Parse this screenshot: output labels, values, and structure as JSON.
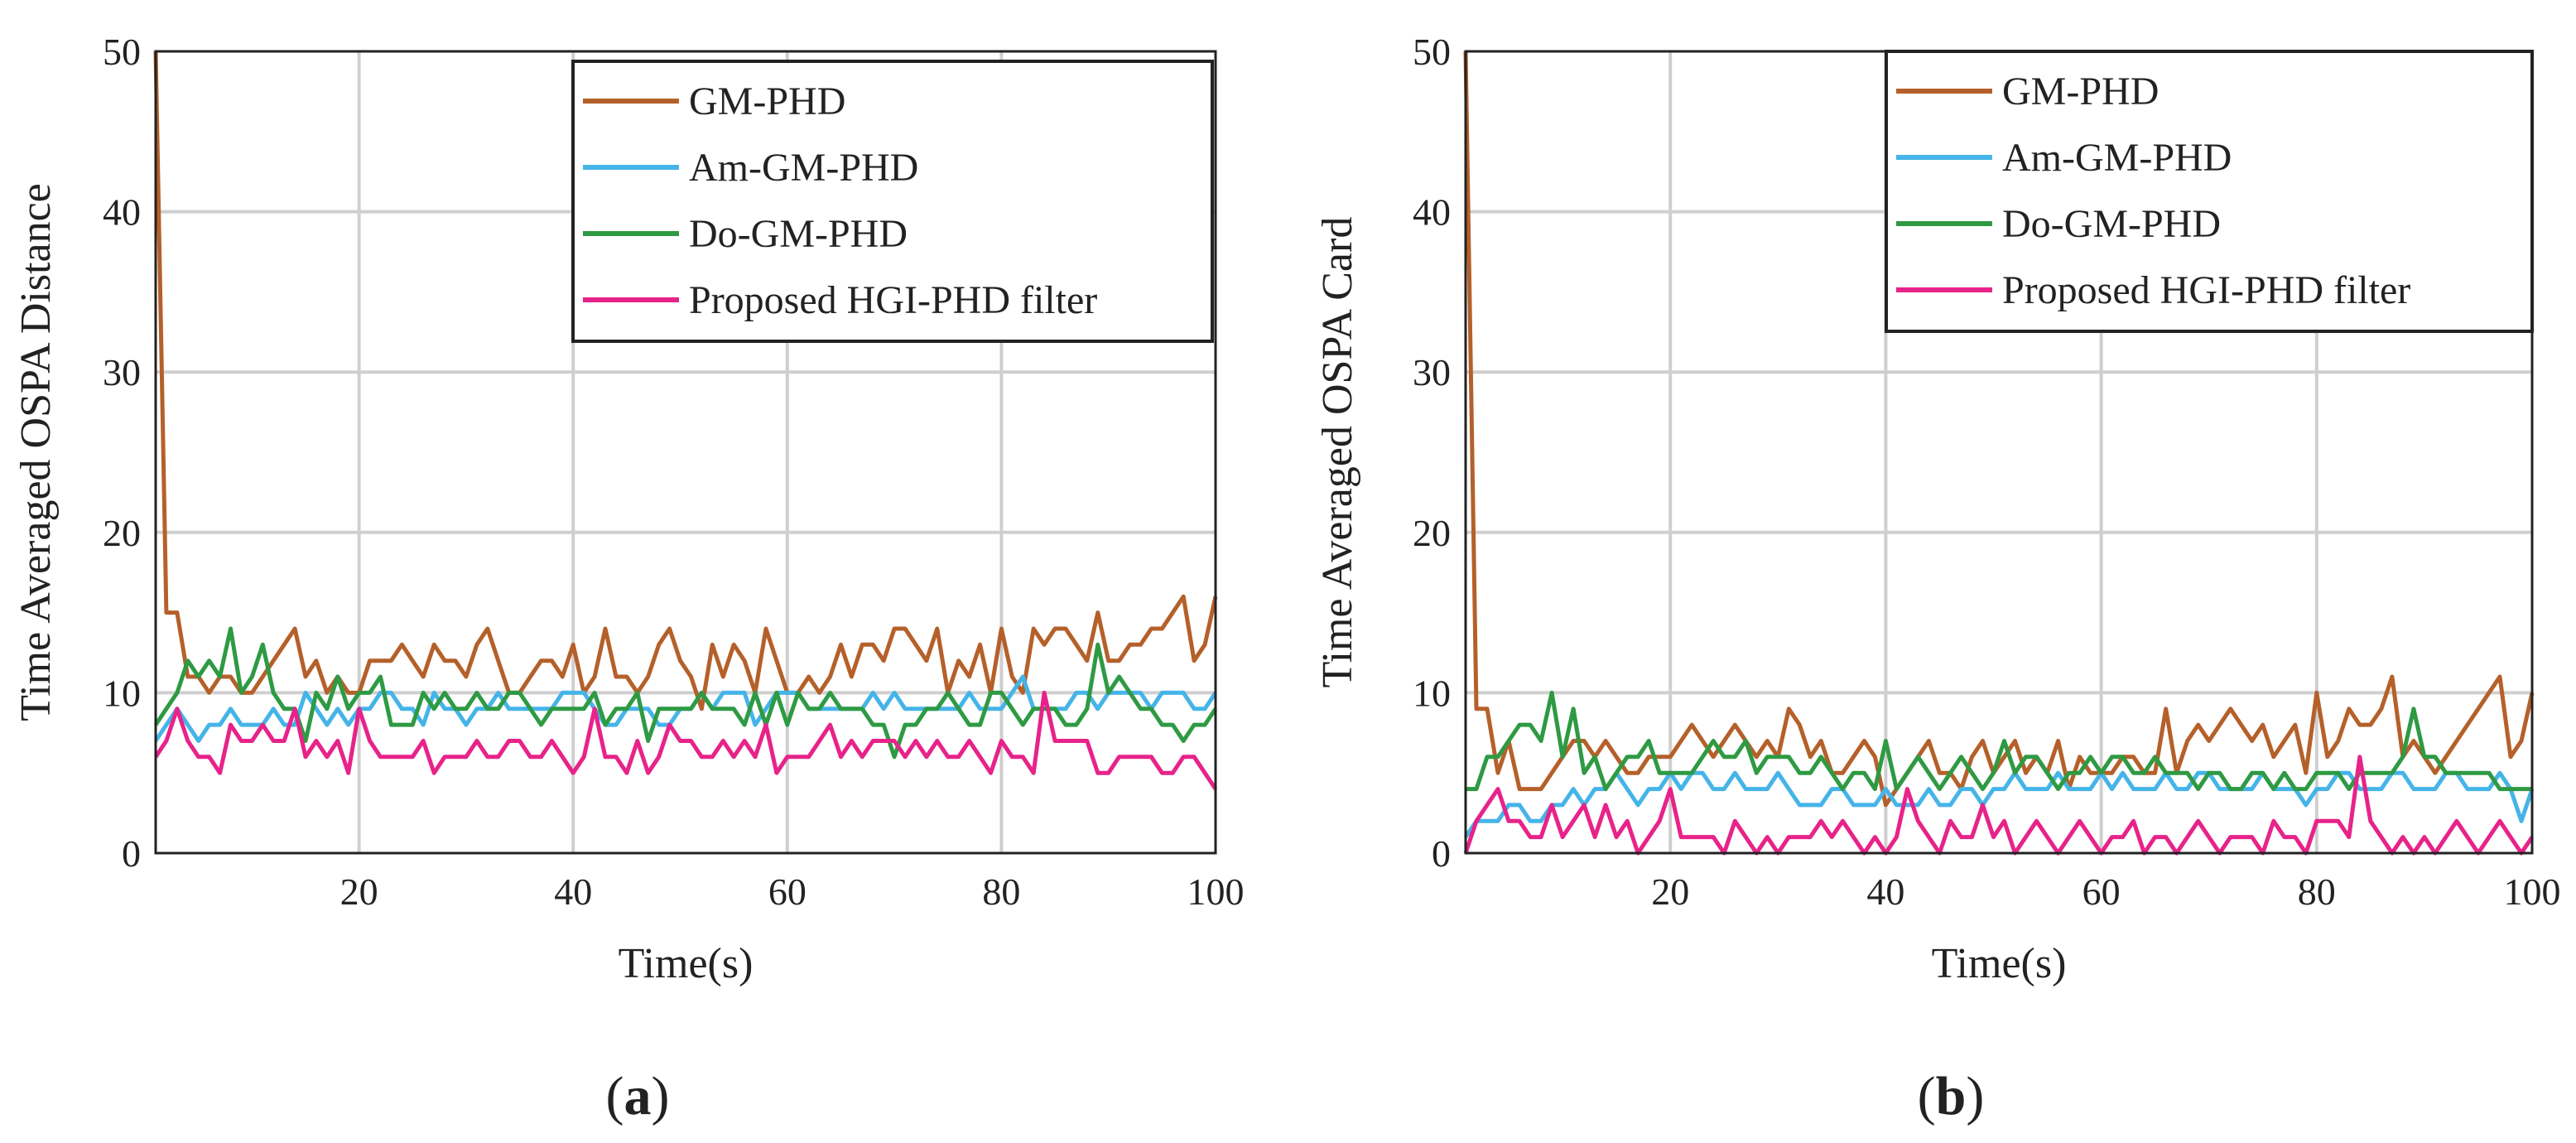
{
  "series_styles": [
    {
      "name": "GM-PHD",
      "color": "#b5602a"
    },
    {
      "name": "Am-GM-PHD",
      "color": "#45b4e8"
    },
    {
      "name": "Do-GM-PHD",
      "color": "#2e9a43"
    },
    {
      "name": "Proposed HGI-PHD filter",
      "color": "#e7238a"
    }
  ],
  "chart_data": [
    {
      "type": "line",
      "panel": "a",
      "caption": {
        "open": "(",
        "letter": "a",
        "close": ")"
      },
      "title": "",
      "xlabel": "Time(s)",
      "ylabel": "Time Averaged OSPA Distance",
      "xlim": [
        1,
        100
      ],
      "ylim": [
        0,
        50
      ],
      "xticks": [
        20,
        40,
        60,
        80,
        100
      ],
      "yticks": [
        0,
        10,
        20,
        30,
        40,
        50
      ],
      "grid": true,
      "legend_position": "top-right",
      "x_start": 1,
      "series": [
        {
          "name": "GM-PHD",
          "values": [
            50,
            15,
            15,
            11,
            11,
            10,
            11,
            11,
            10,
            10,
            11,
            12,
            13,
            14,
            11,
            12,
            10,
            11,
            10,
            10,
            12,
            12,
            12,
            13,
            12,
            11,
            13,
            12,
            12,
            11,
            13,
            14,
            12,
            10,
            10,
            11,
            12,
            12,
            11,
            13,
            10,
            11,
            14,
            11,
            11,
            10,
            11,
            13,
            14,
            12,
            11,
            9,
            13,
            11,
            13,
            12,
            10,
            14,
            12,
            10,
            10,
            11,
            10,
            11,
            13,
            11,
            13,
            13,
            12,
            14,
            14,
            13,
            12,
            14,
            10,
            12,
            11,
            13,
            10,
            14,
            11,
            10,
            14,
            13,
            14,
            14,
            13,
            12,
            15,
            12,
            12,
            13,
            13,
            14,
            14,
            15,
            16,
            12,
            13,
            16
          ]
        },
        {
          "name": "Am-GM-PHD",
          "values": [
            7,
            8,
            9,
            8,
            7,
            8,
            8,
            9,
            8,
            8,
            8,
            9,
            8,
            8,
            10,
            9,
            8,
            9,
            8,
            9,
            9,
            10,
            10,
            9,
            9,
            8,
            10,
            9,
            9,
            8,
            9,
            9,
            10,
            9,
            9,
            9,
            9,
            9,
            10,
            10,
            10,
            9,
            8,
            8,
            9,
            9,
            9,
            8,
            8,
            9,
            9,
            10,
            9,
            10,
            10,
            10,
            8,
            9,
            10,
            10,
            10,
            9,
            9,
            9,
            9,
            9,
            9,
            10,
            9,
            10,
            9,
            9,
            9,
            9,
            9,
            9,
            10,
            9,
            9,
            9,
            10,
            11,
            9,
            9,
            9,
            9,
            10,
            10,
            9,
            10,
            10,
            10,
            10,
            9,
            10,
            10,
            10,
            9,
            9,
            10
          ]
        },
        {
          "name": "Do-GM-PHD",
          "values": [
            8,
            9,
            10,
            12,
            11,
            12,
            11,
            14,
            10,
            11,
            13,
            10,
            9,
            9,
            7,
            10,
            9,
            11,
            9,
            10,
            10,
            11,
            8,
            8,
            8,
            10,
            9,
            10,
            9,
            9,
            10,
            9,
            9,
            10,
            10,
            9,
            8,
            9,
            9,
            9,
            9,
            10,
            8,
            9,
            9,
            10,
            7,
            9,
            9,
            9,
            9,
            10,
            9,
            9,
            9,
            8,
            10,
            8,
            10,
            8,
            10,
            9,
            9,
            10,
            9,
            9,
            9,
            8,
            8,
            6,
            8,
            8,
            9,
            9,
            10,
            9,
            8,
            8,
            10,
            10,
            9,
            8,
            9,
            9,
            9,
            8,
            8,
            9,
            13,
            10,
            11,
            10,
            9,
            9,
            8,
            8,
            7,
            8,
            8,
            9
          ]
        },
        {
          "name": "Proposed HGI-PHD filter",
          "values": [
            6,
            7,
            9,
            7,
            6,
            6,
            5,
            8,
            7,
            7,
            8,
            7,
            7,
            9,
            6,
            7,
            6,
            7,
            5,
            9,
            7,
            6,
            6,
            6,
            6,
            7,
            5,
            6,
            6,
            6,
            7,
            6,
            6,
            7,
            7,
            6,
            6,
            7,
            6,
            5,
            6,
            9,
            6,
            6,
            5,
            7,
            5,
            6,
            8,
            7,
            7,
            6,
            6,
            7,
            6,
            7,
            6,
            8,
            5,
            6,
            6,
            6,
            7,
            8,
            6,
            7,
            6,
            7,
            7,
            7,
            6,
            7,
            6,
            7,
            6,
            6,
            7,
            6,
            5,
            7,
            6,
            6,
            5,
            10,
            7,
            7,
            7,
            7,
            5,
            5,
            6,
            6,
            6,
            6,
            5,
            5,
            6,
            6,
            5,
            4
          ]
        }
      ]
    },
    {
      "type": "line",
      "panel": "b",
      "caption": {
        "open": "(",
        "letter": "b",
        "close": ")"
      },
      "title": "",
      "xlabel": "Time(s)",
      "ylabel": "Time Averaged OSPA Card",
      "xlim": [
        1,
        100
      ],
      "ylim": [
        0,
        50
      ],
      "xticks": [
        20,
        40,
        60,
        80,
        100
      ],
      "yticks": [
        0,
        10,
        20,
        30,
        40,
        50
      ],
      "grid": true,
      "legend_position": "top-right",
      "x_start": 1,
      "series": [
        {
          "name": "GM-PHD",
          "values": [
            50,
            9,
            9,
            5,
            7,
            4,
            4,
            4,
            5,
            6,
            7,
            7,
            6,
            7,
            6,
            5,
            5,
            6,
            6,
            6,
            7,
            8,
            7,
            6,
            7,
            8,
            7,
            6,
            7,
            6,
            9,
            8,
            6,
            7,
            5,
            5,
            6,
            7,
            6,
            3,
            4,
            5,
            6,
            7,
            5,
            5,
            4,
            6,
            7,
            5,
            6,
            7,
            5,
            6,
            5,
            7,
            4,
            6,
            5,
            5,
            5,
            6,
            6,
            5,
            5,
            9,
            5,
            7,
            8,
            7,
            8,
            9,
            8,
            7,
            8,
            6,
            7,
            8,
            5,
            10,
            6,
            7,
            9,
            8,
            8,
            9,
            11,
            6,
            7,
            6,
            5,
            6,
            7,
            8,
            9,
            10,
            11,
            6,
            7,
            10
          ]
        },
        {
          "name": "Am-GM-PHD",
          "values": [
            1,
            2,
            2,
            2,
            3,
            3,
            2,
            2,
            3,
            3,
            4,
            3,
            4,
            4,
            5,
            4,
            3,
            4,
            4,
            5,
            4,
            5,
            5,
            4,
            4,
            5,
            4,
            4,
            4,
            5,
            4,
            3,
            3,
            3,
            4,
            4,
            3,
            3,
            3,
            4,
            3,
            3,
            3,
            4,
            3,
            3,
            4,
            4,
            3,
            4,
            4,
            5,
            4,
            4,
            4,
            5,
            4,
            4,
            4,
            5,
            4,
            5,
            4,
            4,
            4,
            5,
            4,
            4,
            5,
            5,
            4,
            4,
            4,
            4,
            5,
            4,
            4,
            4,
            3,
            4,
            4,
            5,
            5,
            4,
            4,
            4,
            5,
            5,
            4,
            4,
            4,
            5,
            5,
            4,
            4,
            4,
            5,
            4,
            2,
            4
          ]
        },
        {
          "name": "Do-GM-PHD",
          "values": [
            4,
            4,
            6,
            6,
            7,
            8,
            8,
            7,
            10,
            6,
            9,
            5,
            6,
            4,
            5,
            6,
            6,
            7,
            5,
            5,
            5,
            5,
            6,
            7,
            6,
            6,
            7,
            5,
            6,
            6,
            6,
            5,
            5,
            6,
            5,
            4,
            5,
            5,
            4,
            7,
            4,
            5,
            6,
            5,
            4,
            5,
            6,
            5,
            4,
            5,
            7,
            5,
            6,
            6,
            5,
            4,
            5,
            5,
            6,
            5,
            6,
            6,
            5,
            5,
            6,
            5,
            5,
            5,
            4,
            5,
            5,
            4,
            4,
            5,
            5,
            4,
            5,
            4,
            4,
            5,
            5,
            5,
            4,
            5,
            5,
            5,
            5,
            6,
            9,
            6,
            6,
            5,
            5,
            5,
            5,
            5,
            4,
            4,
            4,
            4
          ]
        },
        {
          "name": "Proposed HGI-PHD filter",
          "values": [
            0,
            2,
            3,
            4,
            2,
            2,
            1,
            1,
            3,
            1,
            2,
            3,
            1,
            3,
            1,
            2,
            0,
            1,
            2,
            4,
            1,
            1,
            1,
            1,
            0,
            2,
            1,
            0,
            1,
            0,
            1,
            1,
            1,
            2,
            1,
            2,
            1,
            0,
            1,
            0,
            1,
            4,
            2,
            1,
            0,
            2,
            1,
            1,
            3,
            1,
            2,
            0,
            1,
            2,
            1,
            0,
            1,
            2,
            1,
            0,
            1,
            1,
            2,
            0,
            1,
            1,
            0,
            1,
            2,
            1,
            0,
            1,
            1,
            1,
            0,
            2,
            1,
            1,
            0,
            2,
            2,
            2,
            1,
            6,
            2,
            1,
            0,
            1,
            0,
            1,
            0,
            1,
            2,
            1,
            0,
            1,
            2,
            1,
            0,
            1
          ]
        }
      ]
    }
  ]
}
